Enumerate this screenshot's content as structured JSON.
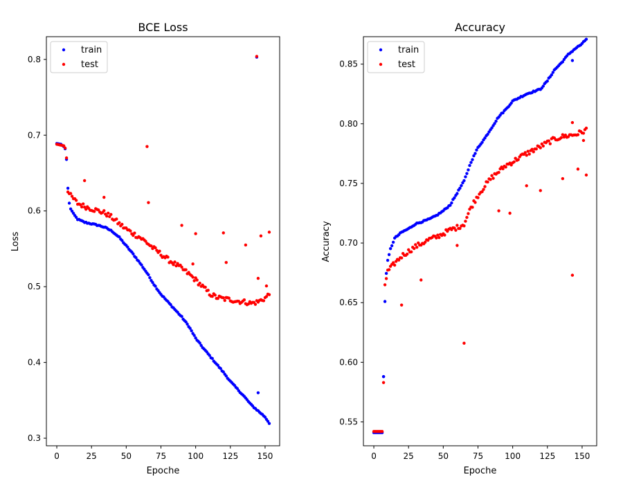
{
  "colors": {
    "train": "#0000ff",
    "test": "#ff0000",
    "axis": "#000000",
    "background": "#ffffff"
  },
  "chart_data": [
    {
      "type": "scatter",
      "title": "BCE Loss",
      "xlabel": "Epoche",
      "ylabel": "Loss",
      "xlim": [
        -7.5,
        160.5
      ],
      "ylim": [
        0.29,
        0.83
      ],
      "x_ticks": [
        0,
        25,
        50,
        75,
        100,
        125,
        150
      ],
      "y_ticks": [
        0.3,
        0.4,
        0.5,
        0.6,
        0.7,
        0.8
      ],
      "grid": false,
      "legend": "top-left",
      "series": [
        {
          "name": "train",
          "color": "#0000ff",
          "anchors": [
            [
              0,
              0.689
            ],
            [
              3,
              0.688
            ],
            [
              5,
              0.685
            ],
            [
              6,
              0.682
            ],
            [
              7,
              0.668
            ],
            [
              8,
              0.63
            ],
            [
              9,
              0.61
            ],
            [
              10,
              0.603
            ],
            [
              12,
              0.596
            ],
            [
              15,
              0.589
            ],
            [
              20,
              0.585
            ],
            [
              25,
              0.583
            ],
            [
              30,
              0.581
            ],
            [
              35,
              0.578
            ],
            [
              40,
              0.573
            ],
            [
              45,
              0.565
            ],
            [
              50,
              0.554
            ],
            [
              55,
              0.543
            ],
            [
              60,
              0.531
            ],
            [
              65,
              0.518
            ],
            [
              70,
              0.503
            ],
            [
              75,
              0.49
            ],
            [
              80,
              0.48
            ],
            [
              85,
              0.47
            ],
            [
              90,
              0.46
            ],
            [
              95,
              0.448
            ],
            [
              100,
              0.432
            ],
            [
              105,
              0.42
            ],
            [
              110,
              0.409
            ],
            [
              115,
              0.398
            ],
            [
              120,
              0.387
            ],
            [
              125,
              0.375
            ],
            [
              130,
              0.365
            ],
            [
              135,
              0.355
            ],
            [
              140,
              0.344
            ],
            [
              145,
              0.336
            ],
            [
              150,
              0.328
            ],
            [
              153,
              0.32
            ]
          ],
          "outliers": [
            [
              145,
              0.36
            ],
            [
              144,
              0.803
            ]
          ]
        },
        {
          "name": "test",
          "color": "#ff0000",
          "anchors": [
            [
              0,
              0.688
            ],
            [
              5,
              0.686
            ],
            [
              6,
              0.683
            ],
            [
              7,
              0.67
            ],
            [
              8,
              0.625
            ],
            [
              10,
              0.62
            ],
            [
              15,
              0.61
            ],
            [
              20,
              0.606
            ],
            [
              25,
              0.603
            ],
            [
              30,
              0.6
            ],
            [
              35,
              0.597
            ],
            [
              40,
              0.591
            ],
            [
              45,
              0.583
            ],
            [
              50,
              0.576
            ],
            [
              55,
              0.57
            ],
            [
              60,
              0.565
            ],
            [
              65,
              0.558
            ],
            [
              70,
              0.55
            ],
            [
              75,
              0.543
            ],
            [
              80,
              0.536
            ],
            [
              85,
              0.53
            ],
            [
              90,
              0.524
            ],
            [
              95,
              0.517
            ],
            [
              100,
              0.509
            ],
            [
              105,
              0.5
            ],
            [
              110,
              0.491
            ],
            [
              115,
              0.486
            ],
            [
              120,
              0.484
            ],
            [
              125,
              0.483
            ],
            [
              130,
              0.481
            ],
            [
              135,
              0.48
            ],
            [
              140,
              0.478
            ],
            [
              145,
              0.48
            ],
            [
              150,
              0.485
            ],
            [
              153,
              0.49
            ]
          ],
          "outliers": [
            [
              65,
              0.685
            ],
            [
              144,
              0.804
            ],
            [
              147,
              0.567
            ],
            [
              153,
              0.572
            ],
            [
              120,
              0.571
            ],
            [
              136,
              0.555
            ],
            [
              90,
              0.581
            ],
            [
              100,
              0.57
            ],
            [
              66,
              0.611
            ],
            [
              20,
              0.64
            ],
            [
              34,
              0.618
            ],
            [
              145,
              0.511
            ],
            [
              151,
              0.501
            ],
            [
              122,
              0.532
            ],
            [
              98,
              0.53
            ]
          ]
        }
      ]
    },
    {
      "type": "scatter",
      "title": "Accuracy",
      "xlabel": "Epoche",
      "ylabel": "Accuracy",
      "xlim": [
        -7.5,
        160.5
      ],
      "ylim": [
        0.53,
        0.873
      ],
      "x_ticks": [
        0,
        25,
        50,
        75,
        100,
        125,
        150
      ],
      "y_ticks": [
        0.55,
        0.6,
        0.65,
        0.7,
        0.75,
        0.8,
        0.85
      ],
      "grid": false,
      "legend": "top-left",
      "series": [
        {
          "name": "train",
          "color": "#0000ff",
          "anchors": [
            [
              0,
              0.541
            ],
            [
              6,
              0.541
            ],
            [
              7,
              0.588
            ],
            [
              8,
              0.651
            ],
            [
              9,
              0.675
            ],
            [
              10,
              0.685
            ],
            [
              12,
              0.695
            ],
            [
              15,
              0.704
            ],
            [
              20,
              0.709
            ],
            [
              25,
              0.712
            ],
            [
              30,
              0.716
            ],
            [
              35,
              0.718
            ],
            [
              40,
              0.72
            ],
            [
              45,
              0.723
            ],
            [
              50,
              0.727
            ],
            [
              55,
              0.732
            ],
            [
              60,
              0.742
            ],
            [
              65,
              0.752
            ],
            [
              70,
              0.768
            ],
            [
              75,
              0.78
            ],
            [
              80,
              0.788
            ],
            [
              85,
              0.797
            ],
            [
              90,
              0.806
            ],
            [
              95,
              0.812
            ],
            [
              100,
              0.819
            ],
            [
              105,
              0.822
            ],
            [
              110,
              0.825
            ],
            [
              115,
              0.827
            ],
            [
              120,
              0.829
            ],
            [
              125,
              0.836
            ],
            [
              130,
              0.845
            ],
            [
              135,
              0.851
            ],
            [
              140,
              0.858
            ],
            [
              145,
              0.863
            ],
            [
              150,
              0.867
            ],
            [
              153,
              0.871
            ]
          ],
          "outliers": [
            [
              7,
              0.588
            ],
            [
              143,
              0.853
            ]
          ]
        },
        {
          "name": "test",
          "color": "#ff0000",
          "anchors": [
            [
              0,
              0.542
            ],
            [
              6,
              0.542
            ],
            [
              7,
              0.583
            ],
            [
              8,
              0.665
            ],
            [
              10,
              0.676
            ],
            [
              15,
              0.683
            ],
            [
              20,
              0.689
            ],
            [
              25,
              0.693
            ],
            [
              30,
              0.697
            ],
            [
              35,
              0.7
            ],
            [
              40,
              0.703
            ],
            [
              45,
              0.705
            ],
            [
              50,
              0.708
            ],
            [
              55,
              0.711
            ],
            [
              60,
              0.713
            ],
            [
              65,
              0.716
            ],
            [
              70,
              0.73
            ],
            [
              75,
              0.74
            ],
            [
              80,
              0.748
            ],
            [
              85,
              0.755
            ],
            [
              90,
              0.76
            ],
            [
              95,
              0.765
            ],
            [
              100,
              0.768
            ],
            [
              105,
              0.772
            ],
            [
              110,
              0.775
            ],
            [
              115,
              0.778
            ],
            [
              120,
              0.781
            ],
            [
              125,
              0.784
            ],
            [
              130,
              0.787
            ],
            [
              135,
              0.789
            ],
            [
              140,
              0.79
            ],
            [
              145,
              0.791
            ],
            [
              150,
              0.793
            ],
            [
              153,
              0.795
            ]
          ],
          "outliers": [
            [
              65,
              0.616
            ],
            [
              143,
              0.673
            ],
            [
              20,
              0.648
            ],
            [
              34,
              0.669
            ],
            [
              98,
              0.725
            ],
            [
              90,
              0.727
            ],
            [
              110,
              0.748
            ],
            [
              120,
              0.744
            ],
            [
              136,
              0.754
            ],
            [
              147,
              0.762
            ],
            [
              153,
              0.757
            ],
            [
              143,
              0.801
            ],
            [
              151,
              0.786
            ],
            [
              60,
              0.698
            ]
          ]
        }
      ]
    }
  ]
}
